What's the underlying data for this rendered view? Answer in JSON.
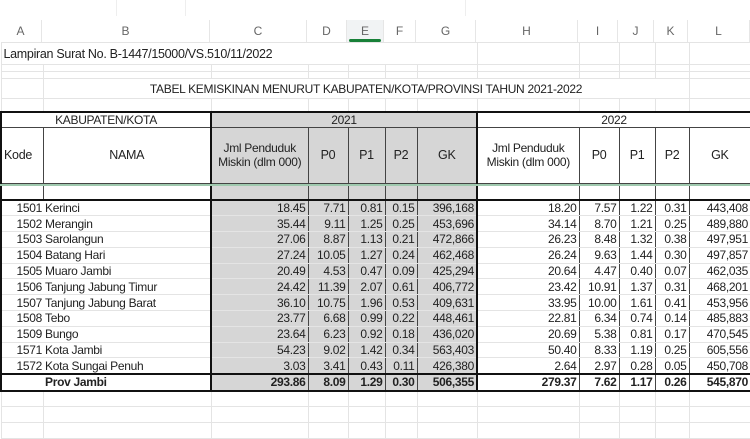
{
  "columns": [
    "A",
    "B",
    "C",
    "D",
    "E",
    "F",
    "G",
    "H",
    "I",
    "J",
    "K",
    "L"
  ],
  "selected_column": "E",
  "letter_label": "Lampiran Surat No. B-1447/15000/VS.510/11/2022",
  "title": "TABEL KEMISKINAN MENURUT KABUPATEN/KOTA/PROVINSI TAHUN 2021-2022",
  "header": {
    "group": "KABUPATEN/KOTA",
    "year1": "2021",
    "year2": "2022",
    "kode": "Kode",
    "nama": "NAMA",
    "jml": "Jml Penduduk Miskin (dlm 000)",
    "p0": "P0",
    "p1": "P1",
    "p2": "P2",
    "gk": "GK"
  },
  "rows": [
    {
      "kode": "1501",
      "nama": "Kerinci",
      "y2021": [
        "18.45",
        "7.71",
        "0.81",
        "0.15",
        "396,168"
      ],
      "y2022": [
        "18.20",
        "7.57",
        "1.22",
        "0.31",
        "443,408"
      ]
    },
    {
      "kode": "1502",
      "nama": "Merangin",
      "y2021": [
        "35.44",
        "9.11",
        "1.25",
        "0.25",
        "453,696"
      ],
      "y2022": [
        "34.14",
        "8.70",
        "1.21",
        "0.25",
        "489,880"
      ]
    },
    {
      "kode": "1503",
      "nama": "Sarolangun",
      "y2021": [
        "27.06",
        "8.87",
        "1.13",
        "0.21",
        "472,866"
      ],
      "y2022": [
        "26.23",
        "8.48",
        "1.32",
        "0.38",
        "497,951"
      ]
    },
    {
      "kode": "1504",
      "nama": "Batang Hari",
      "y2021": [
        "27.24",
        "10.05",
        "1.27",
        "0.24",
        "462,468"
      ],
      "y2022": [
        "26.24",
        "9.63",
        "1.44",
        "0.30",
        "497,857"
      ]
    },
    {
      "kode": "1505",
      "nama": "Muaro Jambi",
      "y2021": [
        "20.49",
        "4.53",
        "0.47",
        "0.09",
        "425,294"
      ],
      "y2022": [
        "20.64",
        "4.47",
        "0.40",
        "0.07",
        "462,035"
      ]
    },
    {
      "kode": "1506",
      "nama": "Tanjung Jabung Timur",
      "y2021": [
        "24.42",
        "11.39",
        "2.07",
        "0.61",
        "406,772"
      ],
      "y2022": [
        "23.42",
        "10.91",
        "1.37",
        "0.31",
        "468,201"
      ]
    },
    {
      "kode": "1507",
      "nama": "Tanjung Jabung Barat",
      "y2021": [
        "36.10",
        "10.75",
        "1.96",
        "0.53",
        "409,631"
      ],
      "y2022": [
        "33.95",
        "10.00",
        "1.61",
        "0.41",
        "453,956"
      ]
    },
    {
      "kode": "1508",
      "nama": "Tebo",
      "y2021": [
        "23.77",
        "6.68",
        "0.99",
        "0.22",
        "448,461"
      ],
      "y2022": [
        "22.81",
        "6.34",
        "0.74",
        "0.14",
        "485,883"
      ]
    },
    {
      "kode": "1509",
      "nama": "Bungo",
      "y2021": [
        "23.64",
        "6.23",
        "0.92",
        "0.18",
        "436,020"
      ],
      "y2022": [
        "20.69",
        "5.38",
        "0.81",
        "0.17",
        "470,545"
      ]
    },
    {
      "kode": "1571",
      "nama": "Kota Jambi",
      "y2021": [
        "54.23",
        "9.02",
        "1.42",
        "0.34",
        "563,403"
      ],
      "y2022": [
        "50.40",
        "8.33",
        "1.19",
        "0.25",
        "605,556"
      ]
    },
    {
      "kode": "1572",
      "nama": "Kota Sungai Penuh",
      "y2021": [
        "3.03",
        "3.41",
        "0.43",
        "0.11",
        "426,380"
      ],
      "y2022": [
        "2.64",
        "2.97",
        "0.28",
        "0.05",
        "450,708"
      ]
    }
  ],
  "total": {
    "nama": "Prov Jambi",
    "y2021": [
      "293.86",
      "8.09",
      "1.29",
      "0.30",
      "506,355"
    ],
    "y2022": [
      "279.37",
      "7.62",
      "1.17",
      "0.26",
      "545,870"
    ]
  }
}
